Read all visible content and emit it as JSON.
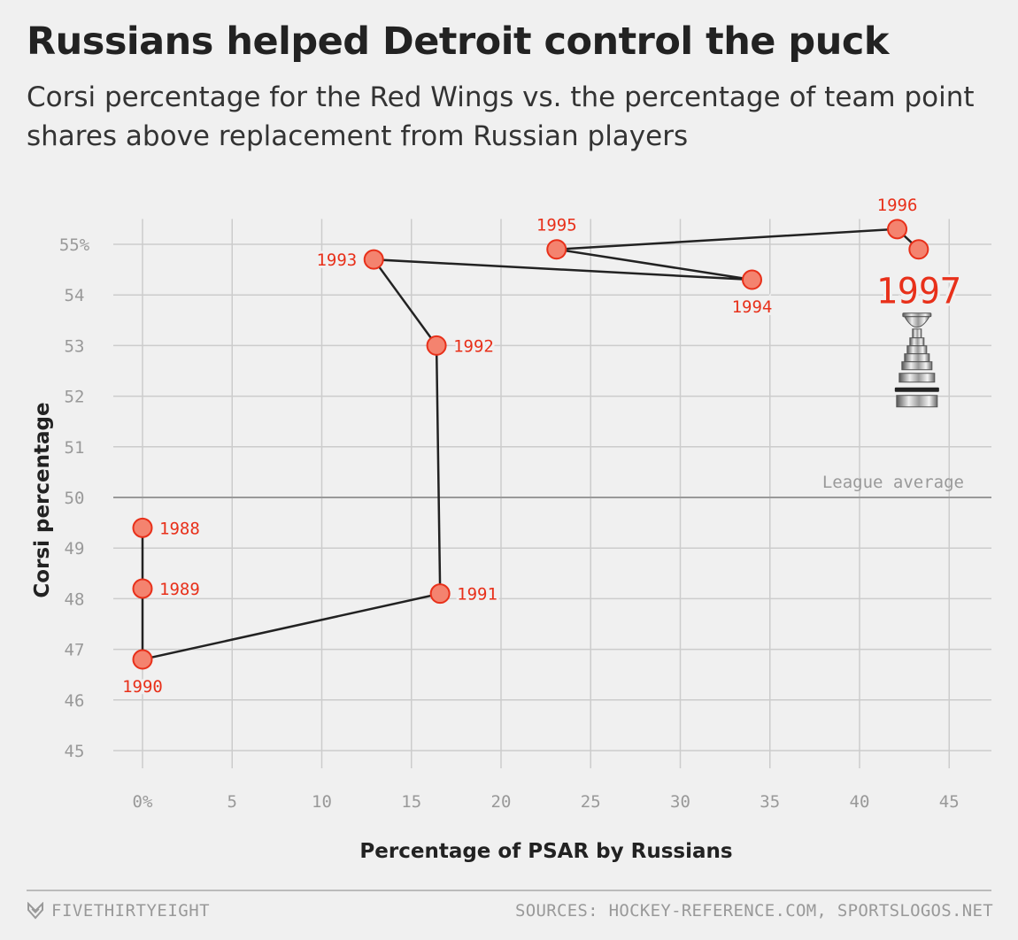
{
  "title": "Russians helped Detroit control the puck",
  "subtitle": "Corsi percentage for the Red Wings vs. the percentage of team point shares above replacement from Russian players",
  "footer": {
    "brand": "FIVETHIRTYEIGHT",
    "sources": "SOURCES: HOCKEY-REFERENCE.COM, SPORTSLOGOS.NET"
  },
  "colors": {
    "point_fill": "#f4836f",
    "point_stroke": "#e8301a",
    "label": "#e8301a",
    "line": "#222222",
    "grid": "#cccccc",
    "reference_line": "#999999"
  },
  "chart_data": {
    "type": "scatter",
    "title": "Russians helped Detroit control the puck",
    "xlabel": "Percentage of PSAR by Russians",
    "ylabel": "Corsi percentage",
    "xlim": [
      -2,
      46
    ],
    "ylim": [
      44.5,
      56
    ],
    "x_ticks": [
      0,
      5,
      10,
      15,
      20,
      25,
      30,
      35,
      40,
      45
    ],
    "x_tick_labels": [
      "0%",
      "5",
      "10",
      "15",
      "20",
      "25",
      "30",
      "35",
      "40",
      "45"
    ],
    "y_ticks": [
      45,
      46,
      47,
      48,
      49,
      50,
      51,
      52,
      53,
      54,
      55
    ],
    "y_tick_labels": [
      "45",
      "46",
      "47",
      "48",
      "49",
      "50",
      "51",
      "52",
      "53",
      "54",
      "55%"
    ],
    "grid": true,
    "connected": true,
    "reference_line": {
      "y": 50,
      "label": "League average"
    },
    "points": [
      {
        "year": "1988",
        "x": 0.0,
        "y": 49.4,
        "label_pos": "right"
      },
      {
        "year": "1989",
        "x": 0.0,
        "y": 48.2,
        "label_pos": "right"
      },
      {
        "year": "1990",
        "x": 0.0,
        "y": 46.8,
        "label_pos": "below"
      },
      {
        "year": "1991",
        "x": 16.6,
        "y": 48.1,
        "label_pos": "right"
      },
      {
        "year": "1992",
        "x": 16.4,
        "y": 53.0,
        "label_pos": "right"
      },
      {
        "year": "1993",
        "x": 12.9,
        "y": 54.7,
        "label_pos": "left"
      },
      {
        "year": "1994",
        "x": 34.0,
        "y": 54.3,
        "label_pos": "below"
      },
      {
        "year": "1995",
        "x": 23.1,
        "y": 54.9,
        "label_pos": "above"
      },
      {
        "year": "1996",
        "x": 42.1,
        "y": 55.3,
        "label_pos": "above"
      },
      {
        "year": "1997",
        "x": 43.3,
        "y": 54.9,
        "label_pos": "big-below"
      }
    ],
    "annotations": [
      {
        "type": "icon",
        "name": "stanley-cup-icon",
        "near_year": "1997"
      }
    ]
  }
}
